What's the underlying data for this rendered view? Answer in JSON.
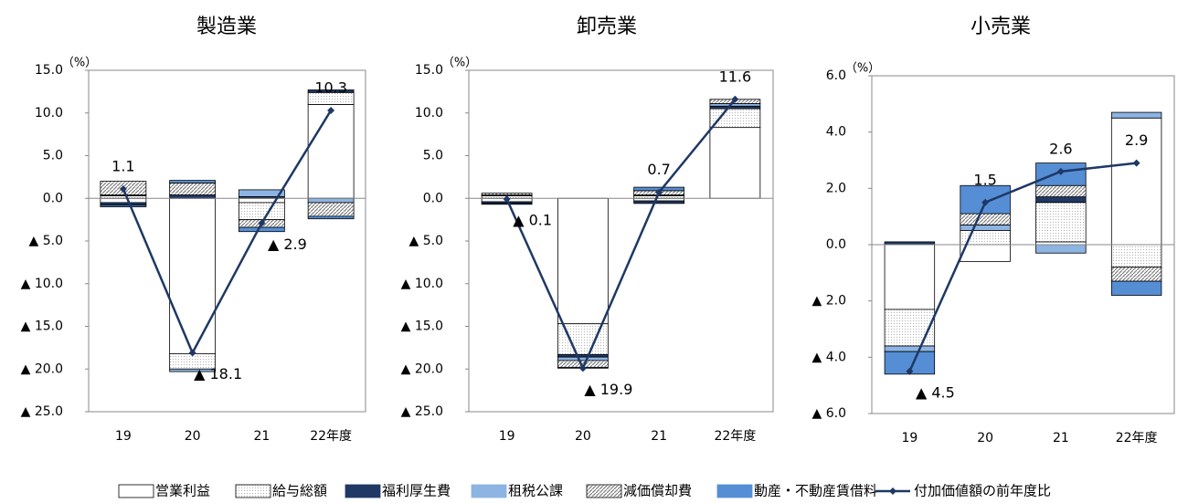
{
  "chart_data": [
    {
      "type": "bar",
      "title": "製造業",
      "y_unit": "（%）",
      "categories": [
        "19",
        "20",
        "21",
        "22年度"
      ],
      "ylim": [
        -25,
        15
      ],
      "yticks": [
        {
          "value": 15,
          "label": "15.0"
        },
        {
          "value": 10,
          "label": "10.0"
        },
        {
          "value": 5,
          "label": "5.0"
        },
        {
          "value": 0,
          "label": "0.0"
        },
        {
          "value": -5,
          "label": "▲ 5.0"
        },
        {
          "value": -10,
          "label": "▲ 10.0"
        },
        {
          "value": -15,
          "label": "▲ 15.0"
        },
        {
          "value": -20,
          "label": "▲ 20.0"
        },
        {
          "value": -25,
          "label": "▲ 25.0"
        }
      ],
      "series": [
        {
          "name": "営業利益",
          "color": "#ffffff",
          "values": [
            -0.5,
            -18.2,
            -0.5,
            11.0
          ]
        },
        {
          "name": "給与総額",
          "color": "#b0b0b0",
          "pattern": "dots",
          "values": [
            0.3,
            -1.8,
            -2.0,
            1.4
          ]
        },
        {
          "name": "福利厚生費",
          "color": "#1f3864",
          "values": [
            -0.3,
            0.4,
            0.2,
            0.3
          ]
        },
        {
          "name": "租税公課",
          "color": "#8db4e2",
          "values": [
            0.1,
            -0.3,
            0.8,
            -0.5
          ]
        },
        {
          "name": "減価償却費",
          "color": "#808080",
          "pattern": "hatch",
          "values": [
            1.6,
            1.4,
            -0.9,
            -1.6
          ]
        },
        {
          "name": "動産・不動産賃借料",
          "color": "#558ed5",
          "values": [
            -0.2,
            0.3,
            -0.5,
            -0.3
          ]
        },
        {
          "name": "付加価値額の前年度比",
          "type": "line",
          "color": "#1f3864",
          "values": [
            1.1,
            -18.1,
            -2.9,
            10.3
          ],
          "value_labels": [
            "1.1",
            "▲ 18.1",
            "▲ 2.9",
            "10.3"
          ]
        }
      ]
    },
    {
      "type": "bar",
      "title": "卸売業",
      "y_unit": "（%）",
      "categories": [
        "19",
        "20",
        "21",
        "22年度"
      ],
      "ylim": [
        -25,
        15
      ],
      "yticks": [
        {
          "value": 15,
          "label": "15.0"
        },
        {
          "value": 10,
          "label": "10.0"
        },
        {
          "value": 5,
          "label": "5.0"
        },
        {
          "value": 0,
          "label": "0.0"
        },
        {
          "value": -5,
          "label": "▲ 5.0"
        },
        {
          "value": -10,
          "label": "▲ 10.0"
        },
        {
          "value": -15,
          "label": "▲ 15.0"
        },
        {
          "value": -20,
          "label": "▲ 20.0"
        },
        {
          "value": -25,
          "label": "▲ 25.0"
        }
      ],
      "series": [
        {
          "name": "営業利益",
          "color": "#ffffff",
          "values": [
            -0.4,
            -14.7,
            -0.3,
            8.3
          ]
        },
        {
          "name": "給与総額",
          "color": "#b0b0b0",
          "pattern": "dots",
          "values": [
            0.3,
            -3.6,
            0.3,
            2.2
          ]
        },
        {
          "name": "福利厚生費",
          "color": "#1f3864",
          "values": [
            -0.2,
            -0.3,
            -0.3,
            0.3
          ]
        },
        {
          "name": "租税公課",
          "color": "#8db4e2",
          "values": [
            0.1,
            -0.4,
            0.1,
            0.3
          ]
        },
        {
          "name": "減価償却費",
          "color": "#808080",
          "pattern": "hatch",
          "values": [
            0.2,
            -0.8,
            0.5,
            0.5
          ]
        },
        {
          "name": "動産・不動産賃借料",
          "color": "#558ed5",
          "values": [
            -0.1,
            -0.1,
            0.4,
            0.0
          ]
        },
        {
          "name": "付加価値額の前年度比",
          "type": "line",
          "color": "#1f3864",
          "values": [
            -0.1,
            -19.9,
            0.7,
            11.6
          ],
          "value_labels": [
            "▲ 0.1",
            "▲ 19.9",
            "0.7",
            "11.6"
          ]
        }
      ]
    },
    {
      "type": "bar",
      "title": "小売業",
      "y_unit": "（%）",
      "categories": [
        "19",
        "20",
        "21",
        "22年度"
      ],
      "ylim": [
        -6,
        6
      ],
      "yticks": [
        {
          "value": 6,
          "label": "6.0"
        },
        {
          "value": 4,
          "label": "4.0"
        },
        {
          "value": 2,
          "label": "2.0"
        },
        {
          "value": 0,
          "label": "0.0"
        },
        {
          "value": -2,
          "label": "▲ 2.0"
        },
        {
          "value": -4,
          "label": "▲ 4.0"
        },
        {
          "value": -6,
          "label": "▲ 6.0"
        }
      ],
      "series": [
        {
          "name": "営業利益",
          "color": "#ffffff",
          "values": [
            -2.3,
            -0.6,
            0.1,
            4.5
          ]
        },
        {
          "name": "給与総額",
          "color": "#b0b0b0",
          "pattern": "dots",
          "values": [
            -1.3,
            0.5,
            1.4,
            -0.8
          ]
        },
        {
          "name": "福利厚生費",
          "color": "#1f3864",
          "values": [
            0.1,
            0.0,
            0.2,
            0.0
          ]
        },
        {
          "name": "租税公課",
          "color": "#8db4e2",
          "values": [
            -0.2,
            0.2,
            -0.3,
            0.2
          ]
        },
        {
          "name": "減価償却費",
          "color": "#808080",
          "pattern": "hatch",
          "values": [
            0.0,
            0.4,
            0.4,
            -0.5
          ]
        },
        {
          "name": "動産・不動産賃借料",
          "color": "#558ed5",
          "values": [
            -0.8,
            1.0,
            0.8,
            -0.5
          ]
        },
        {
          "name": "付加価値額の前年度比",
          "type": "line",
          "color": "#1f3864",
          "values": [
            -4.5,
            1.5,
            2.6,
            2.9
          ],
          "value_labels": [
            "▲ 4.5",
            "1.5",
            "2.6",
            "2.9"
          ]
        }
      ]
    }
  ]
}
